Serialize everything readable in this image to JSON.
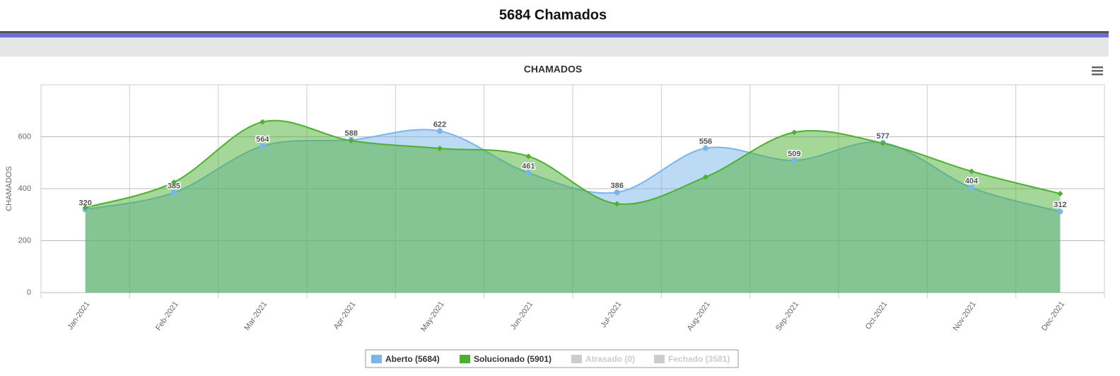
{
  "page_title": "5684 Chamados",
  "chart_data": {
    "type": "area-spline",
    "title": "CHAMADOS",
    "y_label": "CHAMADOS",
    "categories": [
      "Jan-2021",
      "Feb-2021",
      "Mar-2021",
      "Apr-2021",
      "May-2021",
      "Jun-2021",
      "Jul-2021",
      "Aug-2021",
      "Sep-2021",
      "Oct-2021",
      "Nov-2021",
      "Dec-2021"
    ],
    "series": [
      {
        "name": "Aberto (5684)",
        "color": "#7cb5ec",
        "values": [
          320,
          385,
          564,
          588,
          622,
          461,
          386,
          556,
          509,
          577,
          404,
          312
        ],
        "data_labels": true
      },
      {
        "name": "Solucionado (5901)",
        "color": "#4caf32",
        "values": [
          327,
          425,
          657,
          585,
          555,
          525,
          342,
          445,
          617,
          575,
          467,
          381
        ],
        "data_labels": false
      }
    ],
    "hidden_series": [
      {
        "name": "Atrasado (0)"
      },
      {
        "name": "Fechado (3581)"
      }
    ],
    "ylim": [
      0,
      800
    ],
    "yticks": [
      0,
      200,
      400,
      600
    ],
    "grid": true
  }
}
